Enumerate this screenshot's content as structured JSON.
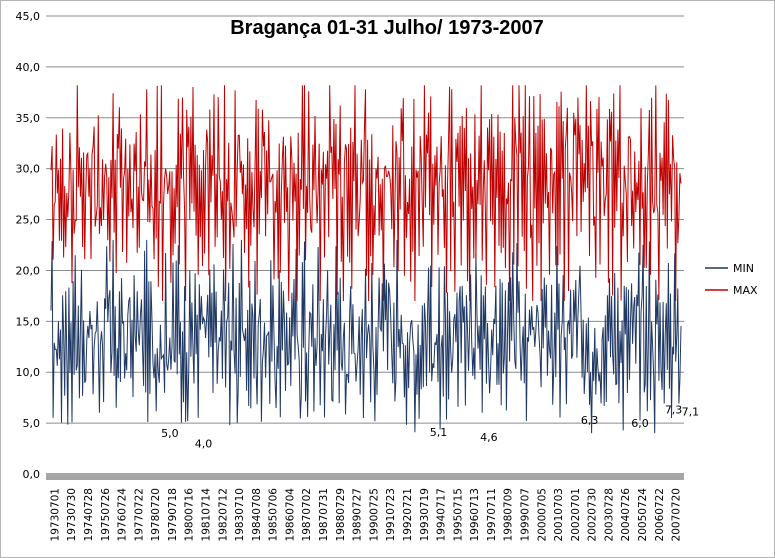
{
  "chart_data": {
    "type": "line",
    "title": "Bragança  01-31 Julho/ 1973-2007",
    "xlabel": "",
    "ylabel": "",
    "ylim": [
      0,
      45
    ],
    "yticks": [
      "0,0",
      "5,0",
      "10,0",
      "15,0",
      "20,0",
      "25,0",
      "30,0",
      "35,0",
      "40,0",
      "45,0"
    ],
    "xticks": [
      "19730701",
      "19730730",
      "19740728",
      "19750726",
      "19760724",
      "19770722",
      "19780720",
      "19790718",
      "19800716",
      "19810714",
      "19820712",
      "19830710",
      "19840708",
      "19850706",
      "19860704",
      "19870702",
      "19870731",
      "19880729",
      "19890727",
      "19900725",
      "19910723",
      "19920721",
      "19930719",
      "19940717",
      "19950715",
      "19960713",
      "19970711",
      "19980709",
      "19990707",
      "20000705",
      "20010703",
      "20020701",
      "20020730",
      "20030728",
      "20040726",
      "20050724",
      "20060722",
      "20070720"
    ],
    "grid": true,
    "legend_position": "right",
    "series": [
      {
        "name": "MIN",
        "color": "#1f3864",
        "min": 4.0,
        "max": 23.0,
        "values": [
          12.0,
          18.5,
          10.0,
          14.0,
          8.0,
          16.0,
          12.0,
          15.0,
          10.0,
          17.0,
          9.0,
          13.0,
          15.0,
          11.0,
          18.0,
          14.0,
          9.0,
          16.0,
          12.0,
          17.0,
          10.0,
          15.0,
          13.0,
          18.0,
          11.0,
          14.0,
          16.0,
          9.0,
          12.0,
          19.0
        ]
      },
      {
        "name": "MAX",
        "color": "#c00000",
        "min": 17.0,
        "max": 38.2,
        "values": [
          25.0,
          34.0,
          22.0,
          31.0,
          27.0,
          33.0,
          24.0,
          29.0,
          20.0,
          32.0,
          28.0,
          34.0,
          23.0,
          30.0,
          26.0,
          33.0,
          21.0,
          31.0,
          29.0,
          35.0,
          24.0,
          32.0,
          27.0,
          30.0,
          22.0,
          34.0,
          26.0,
          31.0,
          28.0,
          33.0
        ]
      }
    ],
    "annotations": [
      {
        "text": "5,0",
        "value": 5.0,
        "x": "19780720"
      },
      {
        "text": "4,0",
        "value": 4.0,
        "x": "19800716"
      },
      {
        "text": "5,1",
        "value": 5.1,
        "x": "19930719"
      },
      {
        "text": "4,6",
        "value": 4.6,
        "x": "19960713"
      },
      {
        "text": "6,3",
        "value": 6.3,
        "x": "20020701"
      },
      {
        "text": "6,0",
        "value": 6.0,
        "x": "20040726"
      },
      {
        "text": "7,3",
        "value": 7.3,
        "x": "20060722"
      },
      {
        "text": "7,1",
        "value": 7.1,
        "x": "20070720"
      }
    ]
  }
}
